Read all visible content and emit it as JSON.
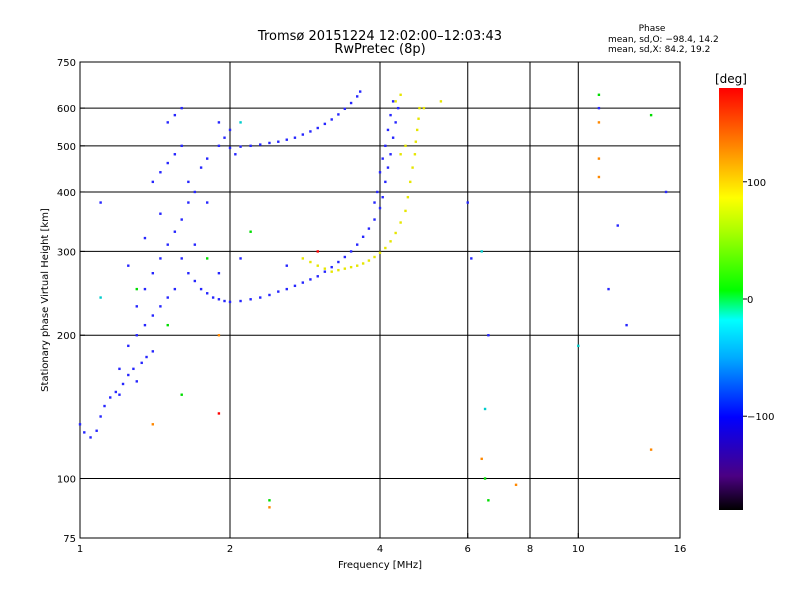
{
  "header": {
    "title_line1": "Tromsø 20151224 12:02:00–12:03:43",
    "title_line2": "RwPretec (8p)",
    "phase_title": "Phase",
    "phase_stats_o": "mean, sd,O: −98.4, 14.2",
    "phase_stats_x": "mean, sd,X: 84.2, 19.2"
  },
  "chart_data": {
    "type": "scatter",
    "xlabel": "Frequency [MHz]",
    "ylabel": "Stationary phase Virtual Height [km]",
    "x_scale": "log",
    "y_scale": "log",
    "xlim": [
      1,
      16
    ],
    "ylim": [
      75,
      750
    ],
    "x_ticks": [
      1,
      2,
      4,
      6,
      8,
      10,
      16
    ],
    "x_tick_labels": [
      "1",
      "2",
      "4",
      "6",
      "8",
      "10",
      "16"
    ],
    "x_gridlines": [
      2,
      4,
      6,
      8,
      10
    ],
    "y_ticks": [
      75,
      100,
      200,
      300,
      400,
      500,
      600,
      750
    ],
    "y_tick_labels": [
      "75",
      "100",
      "200",
      "300",
      "400",
      "500",
      "600",
      "750"
    ],
    "y_gridlines": [
      100,
      200,
      300,
      400,
      500,
      600
    ],
    "grid": true,
    "colorbar": {
      "label": "[deg]",
      "range": [
        -180,
        180
      ],
      "ticks": [
        -100,
        0,
        100
      ],
      "tick_labels": [
        "−100",
        "0",
        "100"
      ]
    },
    "series": [
      {
        "color": "#2626ff",
        "points": [
          [
            1.0,
            130
          ],
          [
            1.02,
            125
          ],
          [
            1.05,
            122
          ],
          [
            1.08,
            126
          ],
          [
            1.1,
            135
          ],
          [
            1.12,
            142
          ],
          [
            1.15,
            148
          ],
          [
            1.18,
            152
          ],
          [
            1.2,
            150
          ],
          [
            1.22,
            158
          ],
          [
            1.25,
            165
          ],
          [
            1.28,
            170
          ],
          [
            1.3,
            160
          ],
          [
            1.33,
            175
          ],
          [
            1.36,
            180
          ],
          [
            1.4,
            185
          ],
          [
            1.2,
            170
          ],
          [
            1.25,
            190
          ],
          [
            1.3,
            200
          ],
          [
            1.35,
            210
          ],
          [
            1.4,
            220
          ],
          [
            1.45,
            230
          ],
          [
            1.5,
            240
          ],
          [
            1.55,
            250
          ],
          [
            1.3,
            230
          ],
          [
            1.35,
            250
          ],
          [
            1.4,
            270
          ],
          [
            1.45,
            290
          ],
          [
            1.5,
            310
          ],
          [
            1.55,
            330
          ],
          [
            1.6,
            350
          ],
          [
            1.65,
            380
          ],
          [
            1.4,
            420
          ],
          [
            1.45,
            440
          ],
          [
            1.5,
            460
          ],
          [
            1.55,
            480
          ],
          [
            1.6,
            500
          ],
          [
            1.5,
            560
          ],
          [
            1.55,
            580
          ],
          [
            1.6,
            600
          ],
          [
            1.65,
            420
          ],
          [
            1.7,
            400
          ],
          [
            1.75,
            450
          ],
          [
            1.8,
            380
          ],
          [
            1.6,
            290
          ],
          [
            1.65,
            270
          ],
          [
            1.7,
            260
          ],
          [
            1.75,
            250
          ],
          [
            1.8,
            245
          ],
          [
            1.85,
            240
          ],
          [
            1.9,
            238
          ],
          [
            1.95,
            236
          ],
          [
            2.0,
            235
          ],
          [
            2.1,
            236
          ],
          [
            2.2,
            238
          ],
          [
            2.3,
            240
          ],
          [
            2.4,
            243
          ],
          [
            2.5,
            247
          ],
          [
            2.6,
            250
          ],
          [
            2.7,
            254
          ],
          [
            2.8,
            258
          ],
          [
            2.9,
            262
          ],
          [
            3.0,
            266
          ],
          [
            3.1,
            272
          ],
          [
            3.2,
            278
          ],
          [
            3.3,
            285
          ],
          [
            3.4,
            292
          ],
          [
            3.5,
            300
          ],
          [
            3.6,
            310
          ],
          [
            3.7,
            322
          ],
          [
            3.8,
            335
          ],
          [
            3.9,
            350
          ],
          [
            4.0,
            370
          ],
          [
            4.05,
            390
          ],
          [
            4.1,
            420
          ],
          [
            4.15,
            450
          ],
          [
            4.2,
            480
          ],
          [
            4.25,
            520
          ],
          [
            4.3,
            560
          ],
          [
            4.35,
            600
          ],
          [
            3.9,
            380
          ],
          [
            3.95,
            400
          ],
          [
            4.0,
            440
          ],
          [
            4.05,
            470
          ],
          [
            4.1,
            500
          ],
          [
            4.15,
            540
          ],
          [
            4.2,
            580
          ],
          [
            4.25,
            620
          ],
          [
            1.9,
            500
          ],
          [
            2.0,
            495
          ],
          [
            2.1,
            498
          ],
          [
            2.2,
            500
          ],
          [
            2.3,
            503
          ],
          [
            2.4,
            507
          ],
          [
            2.5,
            510
          ],
          [
            2.6,
            515
          ],
          [
            2.7,
            520
          ],
          [
            2.8,
            528
          ],
          [
            2.9,
            536
          ],
          [
            3.0,
            545
          ],
          [
            3.1,
            556
          ],
          [
            3.2,
            568
          ],
          [
            3.3,
            582
          ],
          [
            3.4,
            598
          ],
          [
            3.5,
            615
          ],
          [
            3.6,
            635
          ],
          [
            3.65,
            650
          ],
          [
            1.9,
            560
          ],
          [
            2.0,
            540
          ],
          [
            1.95,
            520
          ],
          [
            2.05,
            480
          ],
          [
            1.8,
            470
          ],
          [
            1.1,
            380
          ],
          [
            1.35,
            320
          ],
          [
            1.45,
            360
          ],
          [
            1.25,
            280
          ],
          [
            1.7,
            310
          ],
          [
            1.9,
            270
          ],
          [
            2.1,
            290
          ],
          [
            2.6,
            280
          ],
          [
            6.6,
            200
          ],
          [
            12,
            340
          ],
          [
            11,
            600
          ],
          [
            15,
            400
          ],
          [
            12.5,
            210
          ],
          [
            11.5,
            250
          ],
          [
            6.0,
            380
          ],
          [
            6.1,
            290
          ]
        ]
      },
      {
        "color": "#e6e600",
        "points": [
          [
            3.2,
            272
          ],
          [
            3.3,
            274
          ],
          [
            3.4,
            276
          ],
          [
            3.5,
            278
          ],
          [
            3.6,
            280
          ],
          [
            3.7,
            283
          ],
          [
            3.8,
            287
          ],
          [
            3.9,
            292
          ],
          [
            4.0,
            298
          ],
          [
            4.1,
            305
          ],
          [
            4.2,
            315
          ],
          [
            4.3,
            328
          ],
          [
            4.4,
            345
          ],
          [
            4.5,
            365
          ],
          [
            4.55,
            390
          ],
          [
            4.6,
            420
          ],
          [
            4.65,
            450
          ],
          [
            4.7,
            480
          ],
          [
            4.72,
            510
          ],
          [
            4.75,
            540
          ],
          [
            4.78,
            570
          ],
          [
            4.8,
            600
          ],
          [
            4.3,
            620
          ],
          [
            4.4,
            640
          ],
          [
            2.9,
            285
          ],
          [
            3.0,
            280
          ],
          [
            3.1,
            276
          ],
          [
            2.8,
            290
          ],
          [
            4.9,
            600
          ],
          [
            5.3,
            620
          ],
          [
            4.4,
            480
          ],
          [
            4.5,
            500
          ]
        ]
      },
      {
        "color": "#00dd00",
        "points": [
          [
            1.3,
            250
          ],
          [
            1.5,
            210
          ],
          [
            1.8,
            290
          ],
          [
            2.2,
            330
          ],
          [
            6.5,
            100
          ],
          [
            6.6,
            90
          ],
          [
            11,
            640
          ],
          [
            2.4,
            90
          ],
          [
            14,
            580
          ],
          [
            1.6,
            150
          ]
        ]
      },
      {
        "color": "#00cccc",
        "points": [
          [
            6.4,
            300
          ],
          [
            6.5,
            140
          ],
          [
            10,
            190
          ],
          [
            2.1,
            560
          ],
          [
            1.1,
            240
          ]
        ]
      },
      {
        "color": "#ff8800",
        "points": [
          [
            2.4,
            87
          ],
          [
            6.4,
            110
          ],
          [
            11,
            470
          ],
          [
            11,
            430
          ],
          [
            11,
            560
          ],
          [
            1.9,
            200
          ],
          [
            7.5,
            97
          ],
          [
            1.4,
            130
          ],
          [
            14,
            115
          ]
        ]
      },
      {
        "color": "#ff0000",
        "points": [
          [
            1.9,
            137
          ],
          [
            3.0,
            300
          ]
        ]
      }
    ]
  }
}
